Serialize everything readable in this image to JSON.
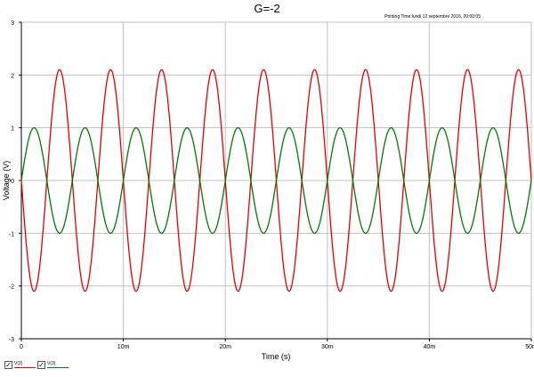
{
  "chart_data": {
    "type": "line",
    "title": "G=-2",
    "subtitle": "Printing Time:lundi 12 septembre 2016, 20:00:05",
    "xlabel": "Time (s)",
    "ylabel": "Voltage (V)",
    "xlim": [
      0,
      0.05
    ],
    "ylim": [
      -3,
      3
    ],
    "xticks": [
      {
        "value": 0,
        "label": "0"
      },
      {
        "value": 0.01,
        "label": "10m"
      },
      {
        "value": 0.02,
        "label": "20m"
      },
      {
        "value": 0.03,
        "label": "30m"
      },
      {
        "value": 0.04,
        "label": "40m"
      },
      {
        "value": 0.05,
        "label": "50m"
      }
    ],
    "yticks": [
      {
        "value": 3,
        "label": "3"
      },
      {
        "value": 2,
        "label": "2"
      },
      {
        "value": 1,
        "label": "1"
      },
      {
        "value": 0,
        "label": "0"
      },
      {
        "value": -1,
        "label": "-1"
      },
      {
        "value": -2,
        "label": "-2"
      },
      {
        "value": -3,
        "label": "-3"
      }
    ],
    "grid": true,
    "legend_position": "bottom-left",
    "series": [
      {
        "name": "V(2)",
        "color": "#e60000",
        "amplitude": 2.1,
        "frequency_hz": 200,
        "phase_deg": 180
      },
      {
        "name": "V(3)",
        "color": "#007a00",
        "amplitude": 1.0,
        "frequency_hz": 200,
        "phase_deg": 0
      }
    ]
  }
}
